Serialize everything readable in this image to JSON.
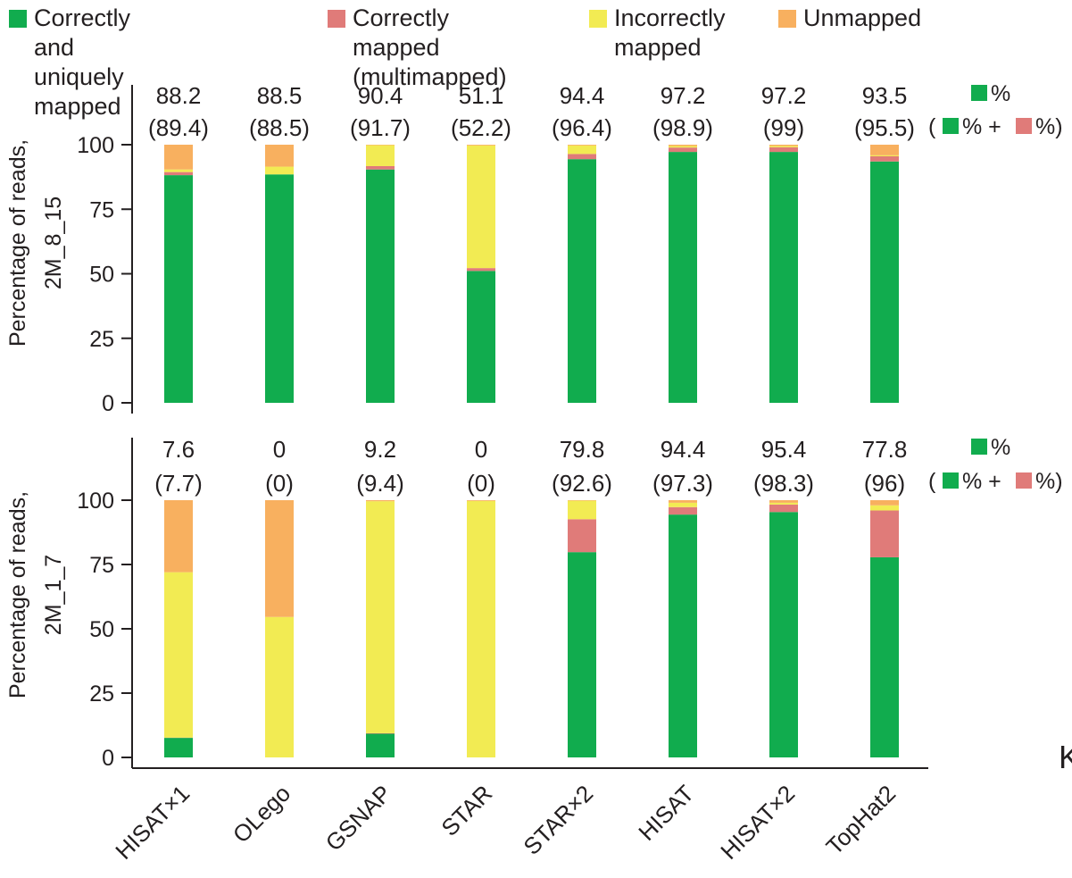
{
  "legend": {
    "items": [
      {
        "label": "Correctly and uniquely\nmapped",
        "color": "#11ac4e"
      },
      {
        "label": "Correctly mapped\n(multimapped)",
        "color": "#e07b79"
      },
      {
        "label": "Incorrectly\nmapped",
        "color": "#f2eb53"
      },
      {
        "label": "Unmapped",
        "color": "#f8b05f"
      }
    ]
  },
  "side_key": {
    "top_symbol": "%",
    "bottom_open": "(",
    "bottom_plus": "% +",
    "bottom_close": "%)"
  },
  "stray_text": "K",
  "chart_data": [
    {
      "type": "bar",
      "stacked": true,
      "ylabel": "Percentage of reads,\n2M_8_15",
      "ylim": [
        0,
        100
      ],
      "yticks": [
        "0",
        "25",
        "50",
        "75",
        "100"
      ],
      "categories": [
        "HISAT×1",
        "OLego",
        "GSNAP",
        "STAR",
        "STAR×2",
        "HISAT",
        "HISAT×2",
        "TopHat2"
      ],
      "top_labels": [
        "88.2",
        "88.5",
        "90.4",
        "51.1",
        "94.4",
        "97.2",
        "97.2",
        "93.5"
      ],
      "paren_labels": [
        "(89.4)",
        "(88.5)",
        "(91.7)",
        "(52.2)",
        "(96.4)",
        "(98.9)",
        "(99)",
        "(95.5)"
      ],
      "series": [
        {
          "name": "Correctly and uniquely mapped",
          "color": "#11ac4e",
          "values": [
            88.2,
            88.5,
            90.4,
            51.1,
            94.4,
            97.2,
            97.2,
            93.5
          ]
        },
        {
          "name": "Correctly mapped (multimapped)",
          "color": "#e07b79",
          "values": [
            1.2,
            0,
            1.3,
            1.1,
            2.0,
            1.7,
            1.8,
            2.0
          ]
        },
        {
          "name": "Incorrectly mapped",
          "color": "#f2eb53",
          "values": [
            1.0,
            3.0,
            8.1,
            47.5,
            3.3,
            0.6,
            0.5,
            0.4
          ]
        },
        {
          "name": "Unmapped",
          "color": "#f8b05f",
          "values": [
            9.6,
            8.5,
            0.2,
            0.3,
            0.3,
            0.5,
            0.5,
            4.1
          ]
        }
      ]
    },
    {
      "type": "bar",
      "stacked": true,
      "ylabel": "Percentage of reads,\n2M_1_7",
      "ylim": [
        0,
        100
      ],
      "yticks": [
        "0",
        "25",
        "50",
        "75",
        "100"
      ],
      "categories": [
        "HISAT×1",
        "OLego",
        "GSNAP",
        "STAR",
        "STAR×2",
        "HISAT",
        "HISAT×2",
        "TopHat2"
      ],
      "top_labels": [
        "7.6",
        "0",
        "9.2",
        "0",
        "79.8",
        "94.4",
        "95.4",
        "77.8"
      ],
      "paren_labels": [
        "(7.7)",
        "(0)",
        "(9.4)",
        "(0)",
        "(92.6)",
        "(97.3)",
        "(98.3)",
        "(96)"
      ],
      "series": [
        {
          "name": "Correctly and uniquely mapped",
          "color": "#11ac4e",
          "values": [
            7.6,
            0,
            9.2,
            0,
            79.8,
            94.4,
            95.4,
            77.8
          ]
        },
        {
          "name": "Correctly mapped (multimapped)",
          "color": "#e07b79",
          "values": [
            0.1,
            0,
            0.2,
            0,
            12.8,
            2.9,
            2.9,
            18.2
          ]
        },
        {
          "name": "Incorrectly mapped",
          "color": "#f2eb53",
          "values": [
            64.3,
            54.6,
            90.2,
            99.7,
            7.2,
            1.7,
            0.7,
            2.0
          ]
        },
        {
          "name": "Unmapped",
          "color": "#f8b05f",
          "values": [
            28.0,
            45.4,
            0.4,
            0.3,
            0.2,
            1.0,
            1.0,
            2.0
          ]
        }
      ]
    }
  ]
}
